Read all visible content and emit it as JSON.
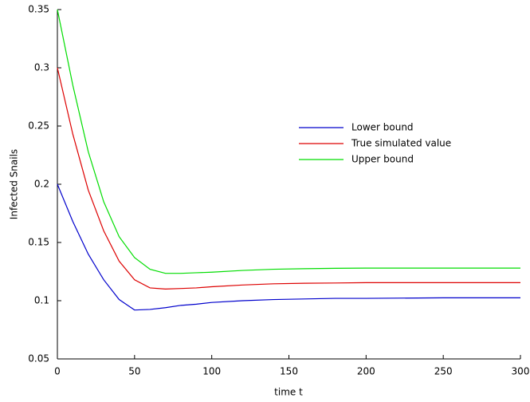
{
  "chart_data": {
    "type": "line",
    "x_label": "time t",
    "y_label": "Infected Snails",
    "x": [
      0,
      10,
      20,
      30,
      40,
      50,
      60,
      70,
      80,
      90,
      100,
      120,
      140,
      160,
      180,
      200,
      250,
      300
    ],
    "series": [
      {
        "name": "Lower bound",
        "color": "#0000cc",
        "values": [
          0.2,
          0.168,
          0.14,
          0.118,
          0.101,
          0.092,
          0.0925,
          0.094,
          0.096,
          0.097,
          0.0985,
          0.1,
          0.101,
          0.1015,
          0.102,
          0.102,
          0.1025,
          0.1025
        ]
      },
      {
        "name": "True simulated value",
        "color": "#dd0000",
        "values": [
          0.3,
          0.243,
          0.195,
          0.16,
          0.134,
          0.118,
          0.111,
          0.11,
          0.1105,
          0.111,
          0.112,
          0.1135,
          0.1145,
          0.115,
          0.1152,
          0.1155,
          0.1155,
          0.1155
        ]
      },
      {
        "name": "Upper bound",
        "color": "#00dd00",
        "values": [
          0.35,
          0.285,
          0.228,
          0.185,
          0.155,
          0.137,
          0.127,
          0.1235,
          0.1235,
          0.124,
          0.1245,
          0.126,
          0.127,
          0.1275,
          0.1278,
          0.128,
          0.128,
          0.128
        ]
      }
    ],
    "xlim": [
      0,
      300
    ],
    "xticks": [
      0,
      50,
      100,
      150,
      200,
      250,
      300
    ],
    "ylim": [
      0.05,
      0.35
    ],
    "yticks": [
      0.05,
      0.1,
      0.15,
      0.2,
      0.25,
      0.3,
      0.35
    ],
    "grid": false,
    "legend": "center-right"
  }
}
